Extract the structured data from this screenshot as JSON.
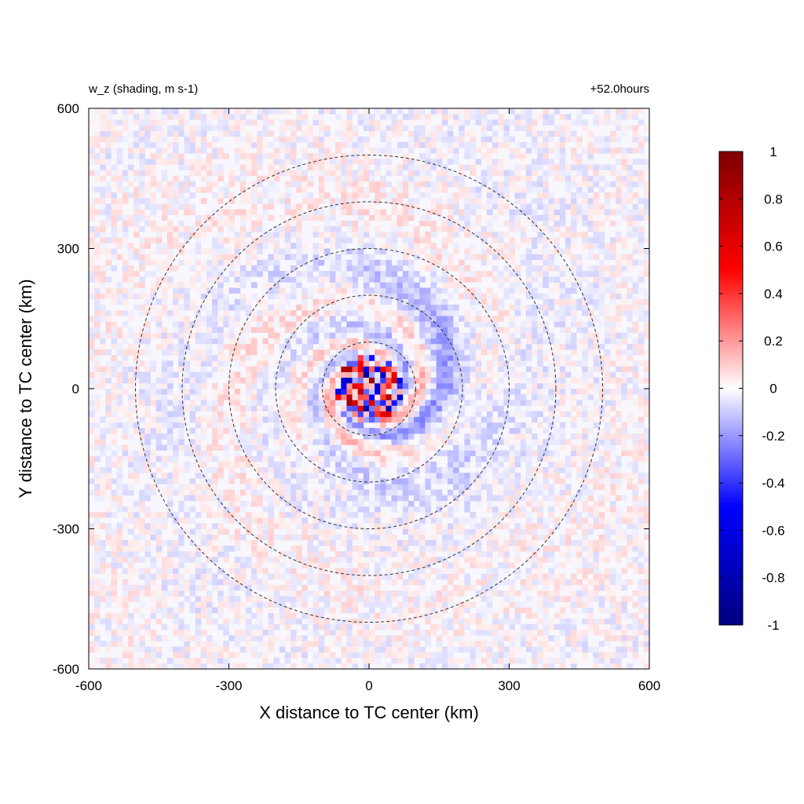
{
  "chart_data": {
    "type": "heatmap",
    "title_left": "w_z (shading, m s-1)",
    "title_right": "+52.0hours",
    "xlabel": "X distance to TC center (km)",
    "ylabel": "Y distance to TC center (km)",
    "xlim": [
      -600,
      600
    ],
    "ylim": [
      -600,
      600
    ],
    "xticks": [
      -600,
      -300,
      0,
      300,
      600
    ],
    "yticks": [
      -600,
      -300,
      0,
      300,
      600
    ],
    "xtick_labels": [
      "-600",
      "-300",
      "0",
      "300",
      "600"
    ],
    "ytick_labels": [
      "-600",
      "-300",
      "0",
      "300",
      "600"
    ],
    "colorbar": {
      "range": [
        -1,
        1
      ],
      "ticks": [
        1,
        0.8,
        0.6,
        0.4,
        0.2,
        0,
        -0.2,
        -0.4,
        -0.6,
        -0.8,
        -1
      ],
      "tick_labels": [
        "1",
        "0.8",
        "0.6",
        "0.4",
        "0.2",
        "0",
        "-0.2",
        "-0.4",
        "-0.6",
        "-0.8",
        "-1"
      ],
      "colors": [
        "#00007f",
        "#0000ff",
        "#ffffff",
        "#ff0000",
        "#7f0000"
      ]
    },
    "range_rings_km": [
      100,
      200,
      300,
      400,
      500
    ],
    "ring_style": "dashed",
    "center": [
      0,
      0
    ]
  }
}
